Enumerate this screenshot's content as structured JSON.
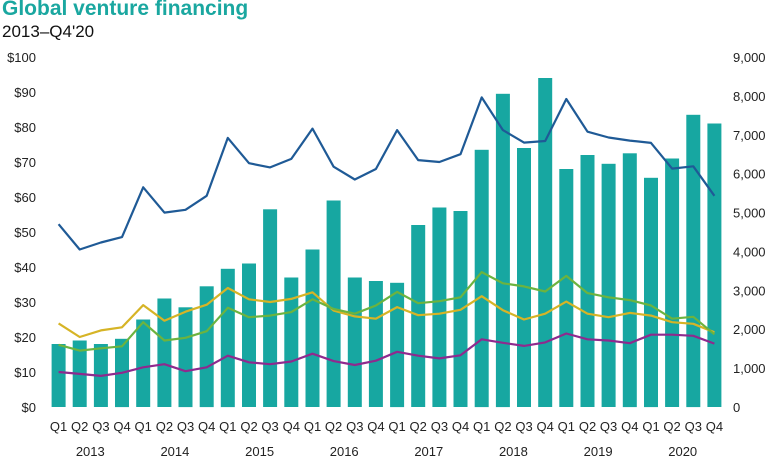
{
  "colors": {
    "title": "#1aa7a0",
    "bars": "#17a7a1",
    "deals": "#1f5a96",
    "yellow": "#d6b426",
    "green": "#6cb33f",
    "purple": "#8e2a8e"
  },
  "chart_data": {
    "type": "bar",
    "title": "Global venture financing",
    "subtitle": "2013–Q4'20",
    "xlabel": "",
    "ylabel": "",
    "categories": [
      "Q1",
      "Q2",
      "Q3",
      "Q4",
      "Q1",
      "Q2",
      "Q3",
      "Q4",
      "Q1",
      "Q2",
      "Q3",
      "Q4",
      "Q1",
      "Q2",
      "Q3",
      "Q4",
      "Q1",
      "Q2",
      "Q3",
      "Q4",
      "Q1",
      "Q2",
      "Q3",
      "Q4",
      "Q1",
      "Q2",
      "Q3",
      "Q4",
      "Q1",
      "Q2",
      "Q3",
      "Q4"
    ],
    "years": [
      "2013",
      "2014",
      "2015",
      "2016",
      "2017",
      "2018",
      "2019",
      "2020"
    ],
    "ylim_left": [
      0,
      100
    ],
    "ylim_right": [
      0,
      9000
    ],
    "left_ticks": [
      "$0",
      "$10",
      "$20",
      "$30",
      "$40",
      "$50",
      "$60",
      "$70",
      "$80",
      "$90",
      "$100"
    ],
    "right_ticks": [
      "0",
      "1,000",
      "2,000",
      "3,000",
      "4,000",
      "5,000",
      "6,000",
      "7,000",
      "8,000",
      "9,000"
    ],
    "grid": false,
    "legend": "none",
    "series": [
      {
        "type": "bar",
        "axis": "left",
        "color": "#17a7a1",
        "values": [
          18,
          19,
          18,
          19.5,
          25,
          31,
          28.5,
          34.5,
          39.5,
          41,
          56.5,
          37,
          45,
          59,
          37,
          36,
          35.5,
          52,
          57,
          56,
          73.5,
          89.5,
          74,
          94,
          68,
          72,
          69.5,
          72.5,
          65.5,
          71,
          83.5,
          81
        ]
      },
      {
        "type": "line",
        "axis": "right",
        "color": "#1f5a96",
        "values": [
          4700,
          4050,
          4230,
          4370,
          5650,
          5000,
          5070,
          5430,
          6920,
          6270,
          6160,
          6380,
          7160,
          6180,
          5850,
          6120,
          7120,
          6350,
          6300,
          6500,
          7960,
          7120,
          6800,
          6840,
          7920,
          7080,
          6930,
          6850,
          6790,
          6130,
          6190,
          5430
        ]
      },
      {
        "type": "line",
        "axis": "right",
        "color": "#d6b426",
        "values": [
          2150,
          1800,
          1970,
          2050,
          2620,
          2220,
          2450,
          2630,
          3060,
          2770,
          2700,
          2780,
          2950,
          2480,
          2330,
          2270,
          2570,
          2360,
          2400,
          2500,
          2850,
          2490,
          2250,
          2400,
          2710,
          2400,
          2310,
          2420,
          2350,
          2180,
          2140,
          1920
        ]
      },
      {
        "type": "line",
        "axis": "right",
        "color": "#6cb33f",
        "values": [
          1600,
          1450,
          1510,
          1560,
          2180,
          1710,
          1780,
          1950,
          2550,
          2310,
          2350,
          2440,
          2770,
          2520,
          2400,
          2610,
          2960,
          2670,
          2720,
          2820,
          3470,
          3180,
          3100,
          2970,
          3370,
          2930,
          2820,
          2750,
          2610,
          2270,
          2320,
          1870
        ]
      },
      {
        "type": "line",
        "axis": "right",
        "color": "#8e2a8e",
        "values": [
          900,
          850,
          800,
          880,
          1020,
          1100,
          920,
          1020,
          1320,
          1150,
          1100,
          1170,
          1370,
          1180,
          1080,
          1190,
          1420,
          1320,
          1250,
          1330,
          1740,
          1650,
          1570,
          1660,
          1890,
          1740,
          1710,
          1640,
          1860,
          1860,
          1830,
          1630
        ]
      }
    ]
  }
}
